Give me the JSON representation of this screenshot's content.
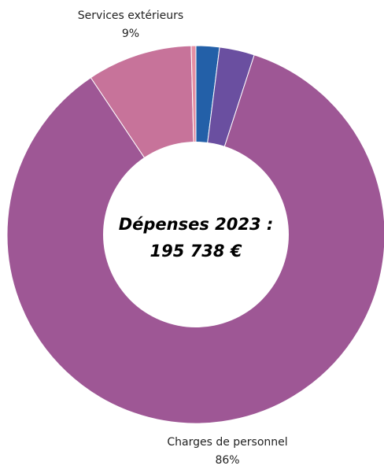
{
  "chart_data": {
    "type": "pie",
    "variant": "donut",
    "center_text": [
      "Dépenses 2023 :",
      "195 738 €"
    ],
    "start_angle_deg": 0,
    "direction": "clockwise",
    "slices": [
      {
        "name": "",
        "percent": 2.0,
        "color": "#2360A8",
        "label": "",
        "value_label": ""
      },
      {
        "name": "",
        "percent": 3.0,
        "color": "#6A4FA0",
        "label": "",
        "value_label": ""
      },
      {
        "name": "Charges de personnel",
        "percent": 85.6,
        "color": "#9E5795",
        "label": "Charges de personnel",
        "value_label": "86%"
      },
      {
        "name": "Services extérieurs",
        "percent": 9.0,
        "color": "#C7739A",
        "label": "Services extérieurs",
        "value_label": "9%"
      },
      {
        "name": "",
        "percent": 0.4,
        "color": "#E58FA3",
        "label": "",
        "value_label": ""
      }
    ]
  }
}
